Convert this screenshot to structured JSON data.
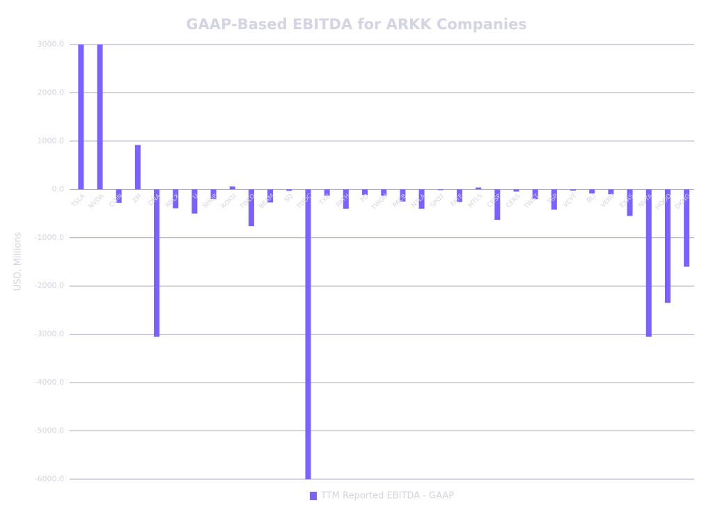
{
  "chart_data": {
    "type": "bar",
    "title": "GAAP-Based EBITDA for ARKK Companies",
    "y_label": "USD, Millions",
    "categories": [
      "TSLA",
      "NVDA",
      "COIN",
      "ZM",
      "DNA",
      "RBLX",
      "U",
      "SHOP",
      "ROKU",
      "TWLO",
      "BEAM",
      "SQ",
      "TDOC",
      "TXG",
      "PATH",
      "PD",
      "TWOU",
      "PACB",
      "NTLA",
      "SPOT",
      "FATE",
      "MTLS",
      "CRSP",
      "CERS",
      "TWST",
      "TSP",
      "VCYT",
      "BLI",
      "VERV",
      "EXAS",
      "NVTA",
      "HOOD",
      "DKNG"
    ],
    "series": [
      {
        "name": "TTM Reported EBITDA - GAAP",
        "color": "#7b61ff",
        "values": [
          3000,
          3000,
          -280,
          920,
          -3050,
          -390,
          -500,
          -200,
          60,
          -760,
          -270,
          -30,
          -6000,
          -130,
          -400,
          -115,
          -130,
          -250,
          -400,
          -15,
          -260,
          40,
          -630,
          -45,
          -200,
          -420,
          -25,
          -85,
          -100,
          -550,
          -3050,
          -2350,
          -1600
        ]
      }
    ],
    "ylim": [
      -6000,
      3000
    ],
    "yticks": [
      {
        "value": -6000,
        "label": "-6000.0"
      },
      {
        "value": -5000,
        "label": "-5000.0"
      },
      {
        "value": -4000,
        "label": "-4000.0"
      },
      {
        "value": -3000,
        "label": "-3000.0"
      },
      {
        "value": -2000,
        "label": "-2000.0"
      },
      {
        "value": -1000,
        "label": "-1000.0"
      },
      {
        "value": 0,
        "label": "0.0"
      },
      {
        "value": 1000,
        "label": "1000.0"
      },
      {
        "value": 2000,
        "label": "2000.0"
      },
      {
        "value": 3000,
        "label": "3000.0"
      }
    ],
    "grid": true,
    "legend": "bottom"
  }
}
